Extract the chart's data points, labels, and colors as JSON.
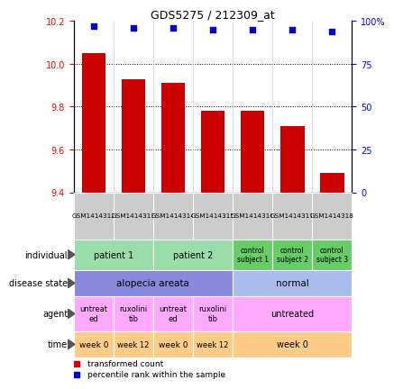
{
  "title": "GDS5275 / 212309_at",
  "samples": [
    "GSM1414312",
    "GSM1414313",
    "GSM1414314",
    "GSM1414315",
    "GSM1414316",
    "GSM1414317",
    "GSM1414318"
  ],
  "bar_values": [
    10.05,
    9.93,
    9.91,
    9.78,
    9.78,
    9.71,
    9.49
  ],
  "dot_values": [
    97,
    96,
    96,
    95,
    95,
    95,
    94
  ],
  "ylim_left": [
    9.4,
    10.2
  ],
  "ylim_right": [
    0,
    100
  ],
  "yticks_left": [
    9.4,
    9.6,
    9.8,
    10.0,
    10.2
  ],
  "yticks_right": [
    0,
    25,
    50,
    75,
    100
  ],
  "bar_color": "#cc0000",
  "dot_color": "#0000cc",
  "bar_width": 0.6,
  "col_header_color": "#cccccc",
  "indiv_patient_color": "#99ddaa",
  "indiv_control_color": "#66cc66",
  "disease_alopecia_color": "#8888dd",
  "disease_normal_color": "#aabbee",
  "agent_color": "#ffaaff",
  "time_color": "#ffcc88",
  "legend_bar_label": "transformed count",
  "legend_dot_label": "percentile rank within the sample",
  "row_label_color": "#555555"
}
